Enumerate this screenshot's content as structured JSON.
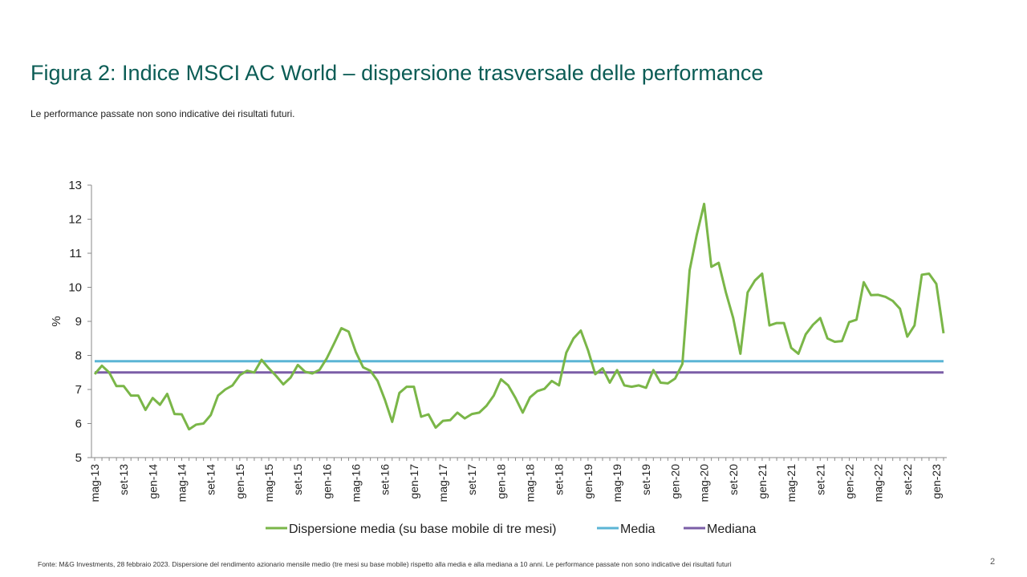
{
  "page": {
    "title": "Figura 2: Indice MSCI AC World – dispersione trasversale delle performance",
    "subtitle": "Le performance passate non sono indicative dei risultati futuri.",
    "source": "Fonte: M&G Investments, 28 febbraio 2023. Dispersione del rendimento azionario mensile medio (tre mesi su base mobile) rispetto alla media e alla mediana a 10 anni. Le performance passate non sono indicative dei risultati futuri",
    "page_number": "2"
  },
  "chart_data": {
    "type": "line",
    "title": "Figura 2: Indice MSCI AC World – dispersione trasversale delle performance",
    "xlabel": "",
    "ylabel": "%",
    "ylim": [
      5,
      13
    ],
    "yticks": [
      "5",
      "6",
      "7",
      "8",
      "9",
      "10",
      "11",
      "12",
      "13"
    ],
    "tick_labels": [
      "mag-13",
      "set-13",
      "gen-14",
      "mag-14",
      "set-14",
      "gen-15",
      "mag-15",
      "set-15",
      "gen-16",
      "mag-16",
      "set-16",
      "gen-17",
      "mag-17",
      "set-17",
      "gen-18",
      "mag-18",
      "set-18",
      "gen-19",
      "mag-19",
      "set-19",
      "gen-20",
      "mag-20",
      "set-20",
      "gen-21",
      "mag-21",
      "set-21",
      "gen-22",
      "mag-22",
      "set-22",
      "gen-23"
    ],
    "x_start": "mag-13",
    "x_end": "feb-23",
    "grid": false,
    "legend_position": "bottom",
    "series": [
      {
        "name": "Dispersione media (su base mobile di tre mesi)",
        "color": "#7ab648",
        "values": [
          7.45,
          7.7,
          7.5,
          7.1,
          7.1,
          6.82,
          6.82,
          6.4,
          6.75,
          6.55,
          6.87,
          6.28,
          6.27,
          5.83,
          5.97,
          6.0,
          6.25,
          6.82,
          7.0,
          7.12,
          7.42,
          7.55,
          7.5,
          7.87,
          7.62,
          7.4,
          7.15,
          7.35,
          7.72,
          7.52,
          7.47,
          7.58,
          7.92,
          8.35,
          8.8,
          8.7,
          8.1,
          7.65,
          7.55,
          7.25,
          6.7,
          6.05,
          6.9,
          7.08,
          7.08,
          6.2,
          6.27,
          5.88,
          6.08,
          6.1,
          6.32,
          6.15,
          6.28,
          6.32,
          6.52,
          6.82,
          7.3,
          7.12,
          6.75,
          6.32,
          6.77,
          6.95,
          7.02,
          7.25,
          7.12,
          8.08,
          8.5,
          8.73,
          8.15,
          7.45,
          7.62,
          7.2,
          7.57,
          7.12,
          7.08,
          7.12,
          7.05,
          7.57,
          7.2,
          7.18,
          7.32,
          7.75,
          10.5,
          11.55,
          12.45,
          10.6,
          10.72,
          9.85,
          9.1,
          8.05,
          9.85,
          10.2,
          10.4,
          8.88,
          8.95,
          8.95,
          8.22,
          8.05,
          8.62,
          8.9,
          9.1,
          8.5,
          8.4,
          8.42,
          8.98,
          9.05,
          10.15,
          9.77,
          9.78,
          9.72,
          9.6,
          9.37,
          8.55,
          8.88,
          10.37,
          10.4,
          10.1,
          8.65
        ]
      },
      {
        "name": "Media",
        "color": "#5bb5d5",
        "values": [
          7.83
        ]
      },
      {
        "name": "Mediana",
        "color": "#7b5ea7",
        "values": [
          7.5
        ]
      }
    ]
  }
}
